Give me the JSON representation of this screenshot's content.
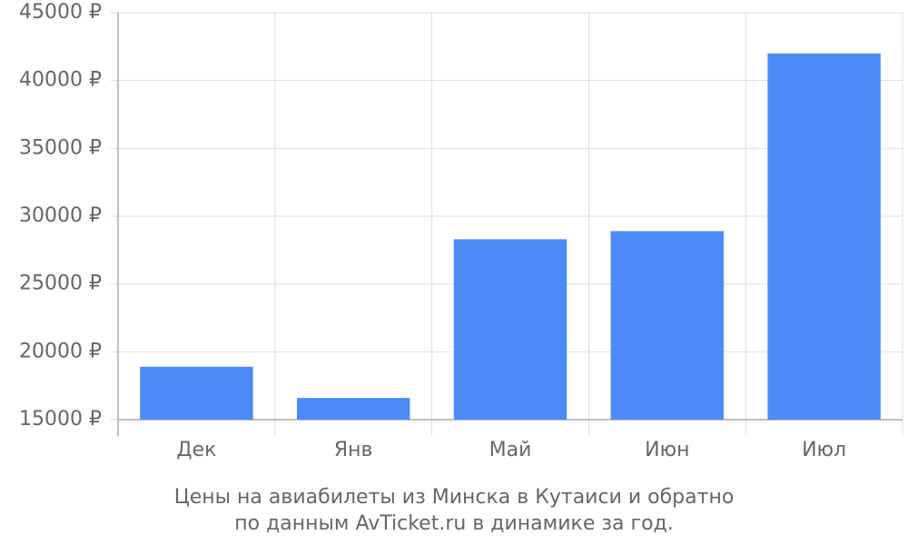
{
  "chart_data": {
    "type": "bar",
    "categories": [
      "Дек",
      "Янв",
      "Май",
      "Июн",
      "Июл"
    ],
    "values": [
      18900,
      16600,
      28300,
      28900,
      42000
    ],
    "color": "#4d8af9",
    "ylim": [
      15000,
      45000
    ],
    "yticks": [
      {
        "value": 15000,
        "label": "15000 ₽"
      },
      {
        "value": 20000,
        "label": "20000 ₽"
      },
      {
        "value": 25000,
        "label": "25000 ₽"
      },
      {
        "value": 30000,
        "label": "30000 ₽"
      },
      {
        "value": 35000,
        "label": "35000 ₽"
      },
      {
        "value": 40000,
        "label": "40000 ₽"
      },
      {
        "value": 45000,
        "label": "45000 ₽"
      }
    ],
    "grid": true,
    "caption": [
      "Цены на авиабилеты из Минска в Кутаиси и обратно",
      "по данным AvTicket.ru в динамике за год."
    ]
  }
}
